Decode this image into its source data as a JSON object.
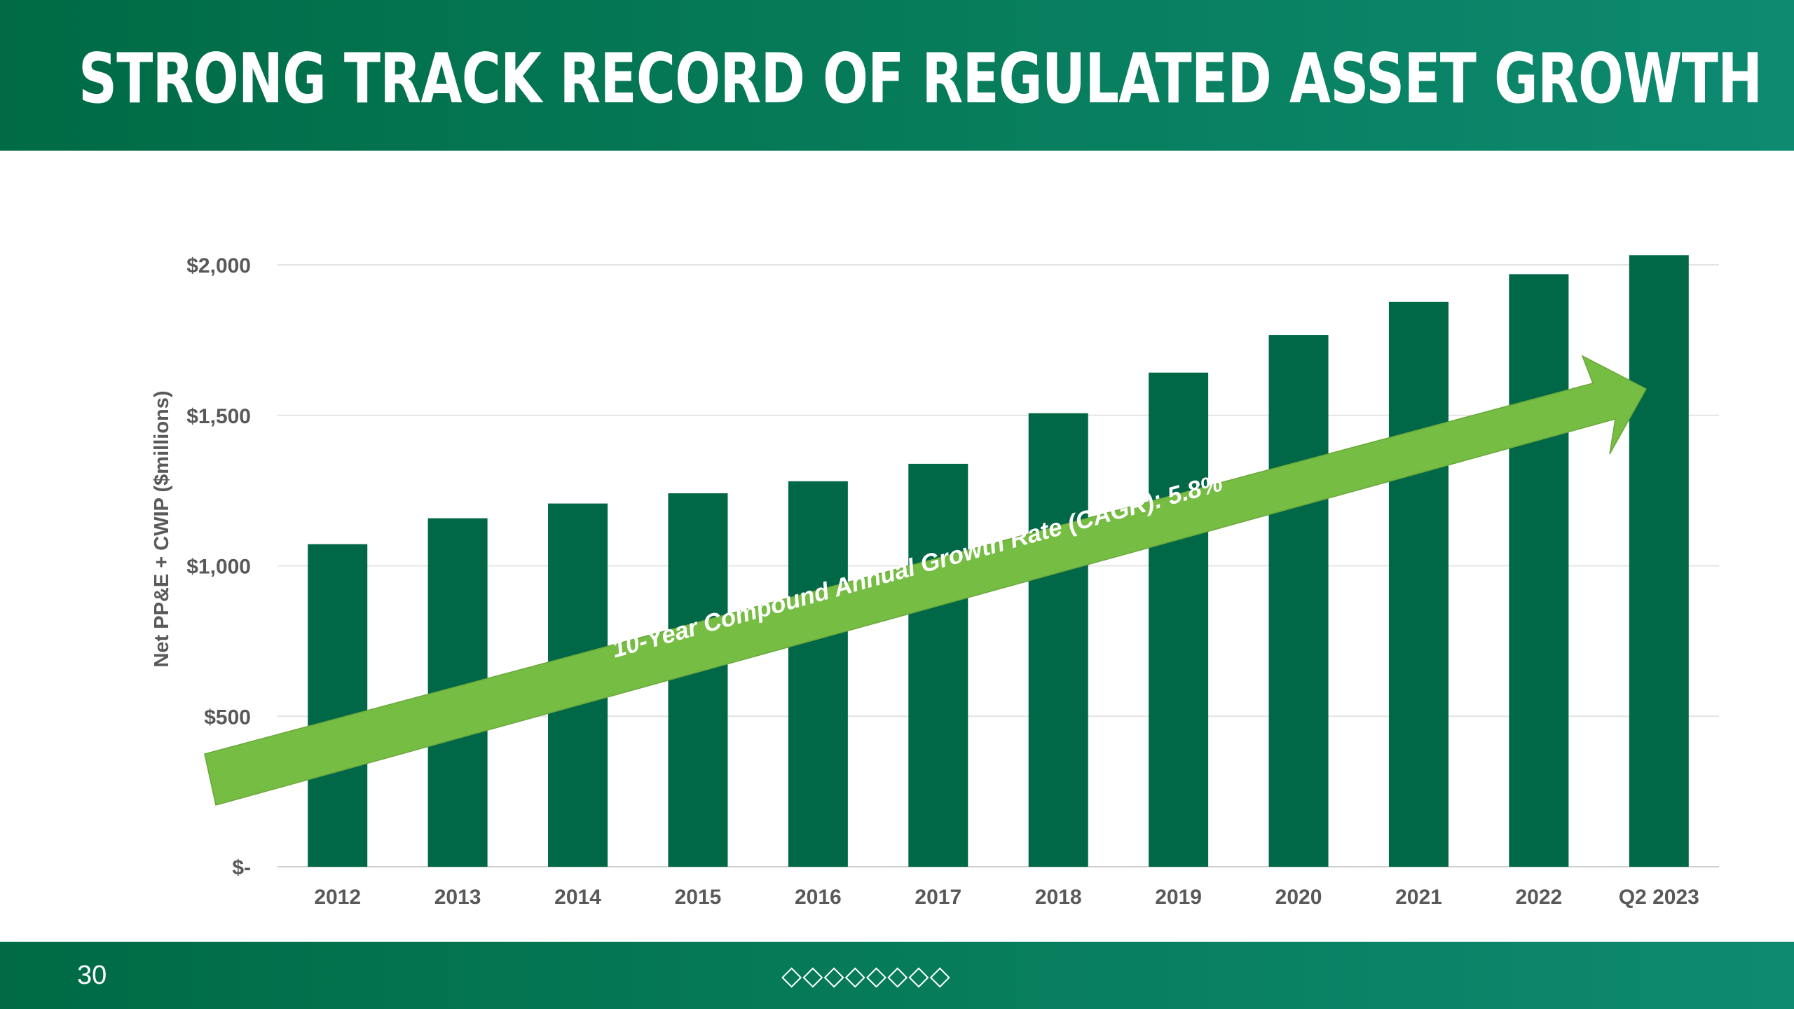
{
  "slide": {
    "title": "STRONG TRACK RECORD OF REGULATED ASSET GROWTH",
    "page_number": "30",
    "footer_ornament": "◇◇◇◇◇◇◇◇"
  },
  "colors": {
    "header": "#006b45",
    "bar": "#006747",
    "arrow": "#76bd43",
    "gridline": "#e4e4e4",
    "axis_text": "#595959"
  },
  "chart_data": {
    "type": "bar",
    "title": "",
    "xlabel": "",
    "ylabel": "Net PP&E + CWIP ($millions)",
    "categories": [
      "2012",
      "2013",
      "2014",
      "2015",
      "2016",
      "2017",
      "2018",
      "2019",
      "2020",
      "2021",
      "2022",
      "Q2 2023"
    ],
    "values": [
      1072,
      1158,
      1207,
      1241,
      1281,
      1339,
      1507,
      1642,
      1767,
      1877,
      1969,
      2032
    ],
    "ylim": [
      0,
      2000
    ],
    "yticks": [
      0,
      500,
      1000,
      1500,
      2000
    ],
    "ytick_labels": [
      "$-",
      "$500",
      "$1,000",
      "$1,500",
      "$2,000"
    ],
    "grid": true,
    "annotations": [
      {
        "text": "10-Year Compound Annual Growth Rate (CAGR): 5.8%",
        "style": "arrow",
        "direction": "up-right",
        "color": "#76bd43"
      }
    ]
  }
}
